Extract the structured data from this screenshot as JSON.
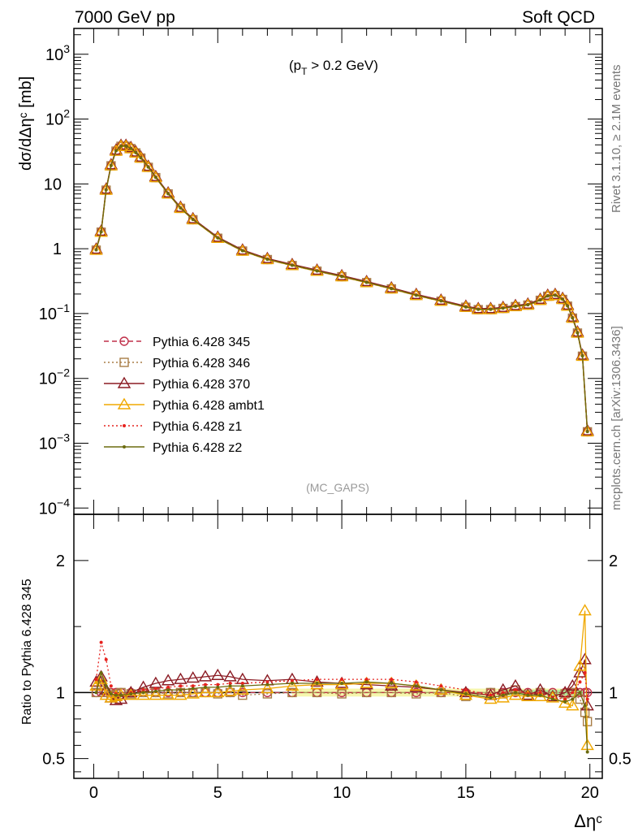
{
  "header": {
    "left": "7000 GeV pp",
    "right": "Soft QCD"
  },
  "side": {
    "rivet": "Rivet 3.1.10, ≥ 2.1M events",
    "mcplots": "mcplots.cern.ch [arXiv:1306.3436]"
  },
  "chart_data": [
    {
      "type": "line",
      "panel": "main",
      "ylabel": "dσ/dΔηᶜ [mb]",
      "xlabel": "Δηᶜ",
      "annotation": "(p_T > 0.2 GeV)",
      "annotation_main": "(p",
      "annotation_sub": "T",
      "annotation_tail": " > 0.2 GeV)",
      "watermark": "(MC_GAPS)",
      "yscale": "log",
      "xlim": [
        -0.8,
        20.5
      ],
      "ylim": [
        8e-05,
        2500
      ],
      "yticks": [
        {
          "value": 0.0001,
          "base": "10",
          "exp": "−4"
        },
        {
          "value": 0.001,
          "base": "10",
          "exp": "−3"
        },
        {
          "value": 0.01,
          "base": "10",
          "exp": "−2"
        },
        {
          "value": 0.1,
          "base": "10",
          "exp": "−1"
        },
        {
          "value": 1,
          "base": "1",
          "exp": ""
        },
        {
          "value": 10,
          "base": "10",
          "exp": ""
        },
        {
          "value": 100,
          "base": "10",
          "exp": "2"
        },
        {
          "value": 1000,
          "base": "10",
          "exp": "3"
        }
      ],
      "xticks": [
        "0",
        "5",
        "10",
        "15",
        "20"
      ],
      "x": [
        0.1,
        0.3,
        0.5,
        0.7,
        0.9,
        1.1,
        1.3,
        1.5,
        1.7,
        1.9,
        2.2,
        2.5,
        3.0,
        3.5,
        4.0,
        5.0,
        6.0,
        7.0,
        8.0,
        9.0,
        10.0,
        11.0,
        12.0,
        13.0,
        14.0,
        15.0,
        15.5,
        16.0,
        16.5,
        17.0,
        17.5,
        18.0,
        18.3,
        18.6,
        18.9,
        19.1,
        19.3,
        19.5,
        19.7,
        19.9
      ],
      "reference_y": [
        0.95,
        1.8,
        8.0,
        19.0,
        32.0,
        38.0,
        38.0,
        35.0,
        30.0,
        25.0,
        18.0,
        12.5,
        7.0,
        4.2,
        2.8,
        1.45,
        0.92,
        0.68,
        0.55,
        0.45,
        0.37,
        0.3,
        0.24,
        0.19,
        0.155,
        0.125,
        0.115,
        0.115,
        0.12,
        0.128,
        0.135,
        0.16,
        0.185,
        0.19,
        0.165,
        0.13,
        0.085,
        0.05,
        0.022,
        0.0015
      ],
      "series": [
        {
          "name": "Pythia 6.428 345",
          "color": "#c0304a",
          "style": "dashed",
          "marker": "open-circle",
          "scale": 1.0
        },
        {
          "name": "Pythia 6.428 346",
          "color": "#a87d46",
          "style": "dotted",
          "marker": "open-square",
          "scale": 1.0
        },
        {
          "name": "Pythia 6.428 370",
          "color": "#8b1c24",
          "style": "solid",
          "marker": "open-triangle",
          "scale": 1.04
        },
        {
          "name": "Pythia 6.428 ambt1",
          "color": "#f0a800",
          "style": "solid",
          "marker": "open-triangle",
          "scale": 1.0
        },
        {
          "name": "Pythia 6.428 z1",
          "color": "#e6231f",
          "style": "dotted",
          "marker": "dot",
          "scale": 1.02
        },
        {
          "name": "Pythia 6.428 z2",
          "color": "#6b6b0f",
          "style": "solid",
          "marker": "dot",
          "scale": 1.01
        }
      ]
    },
    {
      "type": "line",
      "panel": "ratio",
      "ylabel": "Ratio to Pythia 6.428 345",
      "ylim": [
        0.35,
        2.35
      ],
      "yticks": [
        "0.5",
        "1",
        "2"
      ],
      "x": [
        0.1,
        0.3,
        0.5,
        0.7,
        0.9,
        1.1,
        1.5,
        2.0,
        2.5,
        3.0,
        3.5,
        4.0,
        4.5,
        5.0,
        5.5,
        6.0,
        7.0,
        8.0,
        9.0,
        10.0,
        11.0,
        12.0,
        13.0,
        14.0,
        15.0,
        16.0,
        16.5,
        17.0,
        17.5,
        18.0,
        18.5,
        19.0,
        19.3,
        19.6,
        19.8,
        19.9
      ],
      "series": [
        {
          "name": "Pythia 6.428 345",
          "values": [
            1,
            1,
            1,
            1,
            1,
            1,
            1,
            1,
            1,
            1,
            1,
            1,
            1,
            1,
            1,
            1,
            1,
            1,
            1,
            1,
            1,
            1,
            1,
            1,
            1,
            1,
            1,
            1,
            1,
            1,
            1,
            1,
            1,
            1,
            1,
            1
          ]
        },
        {
          "name": "Pythia 6.428 346",
          "values": [
            1.0,
            1.05,
            1.0,
            0.98,
            0.99,
            1.0,
            0.99,
            1.0,
            1.0,
            0.99,
            1.0,
            1.0,
            1.0,
            0.99,
            1.0,
            0.98,
            0.99,
            1.0,
            1.0,
            0.99,
            1.0,
            1.0,
            0.99,
            1.0,
            0.97,
            1.0,
            0.99,
            1.02,
            0.98,
            1.0,
            0.97,
            0.99,
            1.0,
            0.95,
            0.85,
            0.78
          ]
        },
        {
          "name": "Pythia 6.428 370",
          "values": [
            1.08,
            1.12,
            1.02,
            0.96,
            0.94,
            0.95,
            1.0,
            1.04,
            1.07,
            1.09,
            1.1,
            1.11,
            1.12,
            1.13,
            1.12,
            1.1,
            1.09,
            1.1,
            1.08,
            1.07,
            1.06,
            1.05,
            1.04,
            1.02,
            1.0,
            0.98,
            1.02,
            1.05,
            0.98,
            1.02,
            0.97,
            1.0,
            1.05,
            1.15,
            1.25,
            0.9
          ]
        },
        {
          "name": "Pythia 6.428 ambt1",
          "values": [
            1.05,
            1.1,
            0.98,
            0.96,
            0.97,
            0.98,
            0.98,
            0.98,
            0.98,
            0.98,
            0.98,
            0.99,
            1.0,
            1.0,
            1.01,
            1.02,
            1.03,
            1.05,
            1.06,
            1.06,
            1.07,
            1.07,
            1.05,
            1.02,
            0.98,
            0.95,
            0.96,
            0.98,
            0.97,
            0.97,
            0.96,
            0.92,
            0.9,
            1.2,
            1.62,
            0.6
          ]
        },
        {
          "name": "Pythia 6.428 z1",
          "values": [
            1.1,
            1.38,
            1.25,
            1.05,
            0.99,
            0.98,
            1.0,
            1.02,
            1.03,
            1.04,
            1.05,
            1.05,
            1.06,
            1.06,
            1.07,
            1.07,
            1.08,
            1.09,
            1.1,
            1.1,
            1.1,
            1.1,
            1.08,
            1.05,
            1.02,
            0.98,
            1.0,
            1.02,
            0.99,
            1.0,
            0.96,
            0.95,
            1.0,
            1.08,
            1.15,
            0.95
          ]
        },
        {
          "name": "Pythia 6.428 z2",
          "values": [
            1.0,
            1.15,
            1.05,
            0.99,
            0.98,
            0.98,
            0.99,
            1.0,
            1.01,
            1.02,
            1.02,
            1.03,
            1.04,
            1.04,
            1.05,
            1.05,
            1.06,
            1.07,
            1.07,
            1.07,
            1.08,
            1.07,
            1.05,
            1.02,
            0.99,
            0.96,
            0.98,
            1.0,
            0.98,
            0.98,
            0.95,
            0.93,
            0.95,
            1.0,
            0.9,
            0.55
          ]
        }
      ]
    }
  ]
}
